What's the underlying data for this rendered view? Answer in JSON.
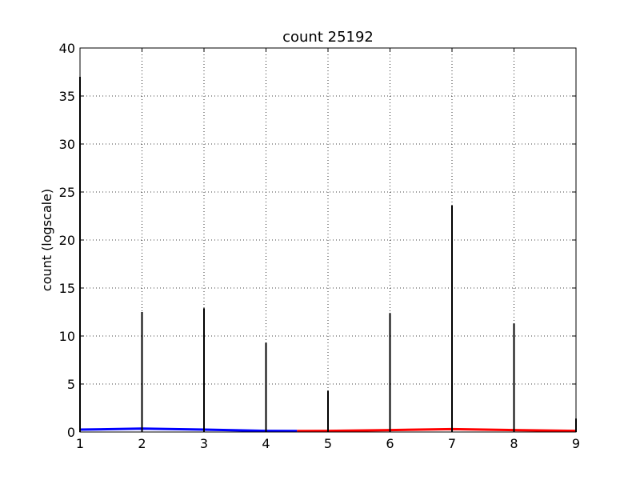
{
  "chart_data": {
    "type": "bar",
    "title": "count 25192",
    "xlabel": "",
    "ylabel": "count (logscale)",
    "xlim": [
      1,
      9
    ],
    "ylim": [
      0,
      40
    ],
    "grid": true,
    "x_ticks": [
      "1",
      "2",
      "3",
      "4",
      "5",
      "6",
      "7",
      "8",
      "9"
    ],
    "y_ticks": [
      "0",
      "5",
      "10",
      "15",
      "20",
      "25",
      "30",
      "35",
      "40"
    ],
    "spikes": {
      "color": "#000000",
      "points": [
        {
          "x": 1,
          "y": 37
        },
        {
          "x": 2,
          "y": 12.5
        },
        {
          "x": 3,
          "y": 12.9
        },
        {
          "x": 4,
          "y": 9.3
        },
        {
          "x": 5,
          "y": 4.3
        },
        {
          "x": 6,
          "y": 12.4
        },
        {
          "x": 7,
          "y": 23.6
        },
        {
          "x": 8,
          "y": 11.3
        },
        {
          "x": 9,
          "y": 1.4
        }
      ]
    },
    "bands": [
      {
        "color": "#0000ff",
        "points": [
          {
            "x": 1,
            "y": 0.25
          },
          {
            "x": 2,
            "y": 0.35
          },
          {
            "x": 3,
            "y": 0.25
          },
          {
            "x": 4,
            "y": 0.12
          },
          {
            "x": 4.5,
            "y": 0.1
          }
        ]
      },
      {
        "color": "#ff0000",
        "points": [
          {
            "x": 4.5,
            "y": 0.1
          },
          {
            "x": 5,
            "y": 0.12
          },
          {
            "x": 6,
            "y": 0.2
          },
          {
            "x": 7,
            "y": 0.3
          },
          {
            "x": 8,
            "y": 0.2
          },
          {
            "x": 9,
            "y": 0.12
          }
        ]
      }
    ]
  }
}
